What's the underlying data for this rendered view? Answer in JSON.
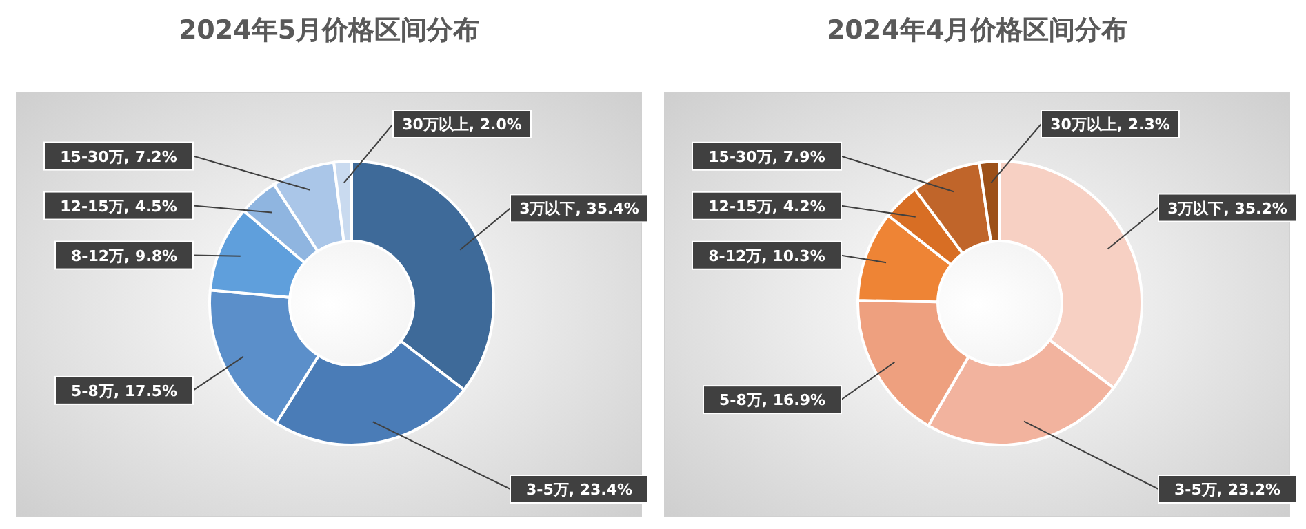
{
  "chart_data": [
    {
      "type": "donut",
      "title": "2024年5月价格区间分布",
      "categories": [
        "3万以下",
        "3-5万",
        "5-8万",
        "8-12万",
        "12-15万",
        "15-30万",
        "30万以上"
      ],
      "values": [
        35.4,
        23.4,
        17.5,
        9.8,
        4.5,
        7.2,
        2.0
      ],
      "value_labels": [
        "35.4%",
        "23.4%",
        "17.5%",
        "9.8%",
        "4.5%",
        "7.2%",
        "2.0%"
      ],
      "colors": [
        "#3e6a99",
        "#4a7cb7",
        "#5b8fca",
        "#5f9fdc",
        "#8fb5e0",
        "#aac6e8",
        "#c9daef"
      ]
    },
    {
      "type": "donut",
      "title": "2024年4月价格区间分布",
      "categories": [
        "3万以下",
        "3-5万",
        "5-8万",
        "8-12万",
        "12-15万",
        "15-30万",
        "30万以上"
      ],
      "values": [
        35.2,
        23.2,
        16.9,
        10.3,
        4.2,
        7.9,
        2.3
      ],
      "value_labels": [
        "35.2%",
        "23.2%",
        "16.9%",
        "10.3%",
        "4.2%",
        "7.9%",
        "2.3%"
      ],
      "colors": [
        "#f7d0c3",
        "#f2b39e",
        "#eea07f",
        "#ee8435",
        "#d86e24",
        "#c0652a",
        "#9c5018"
      ]
    }
  ]
}
